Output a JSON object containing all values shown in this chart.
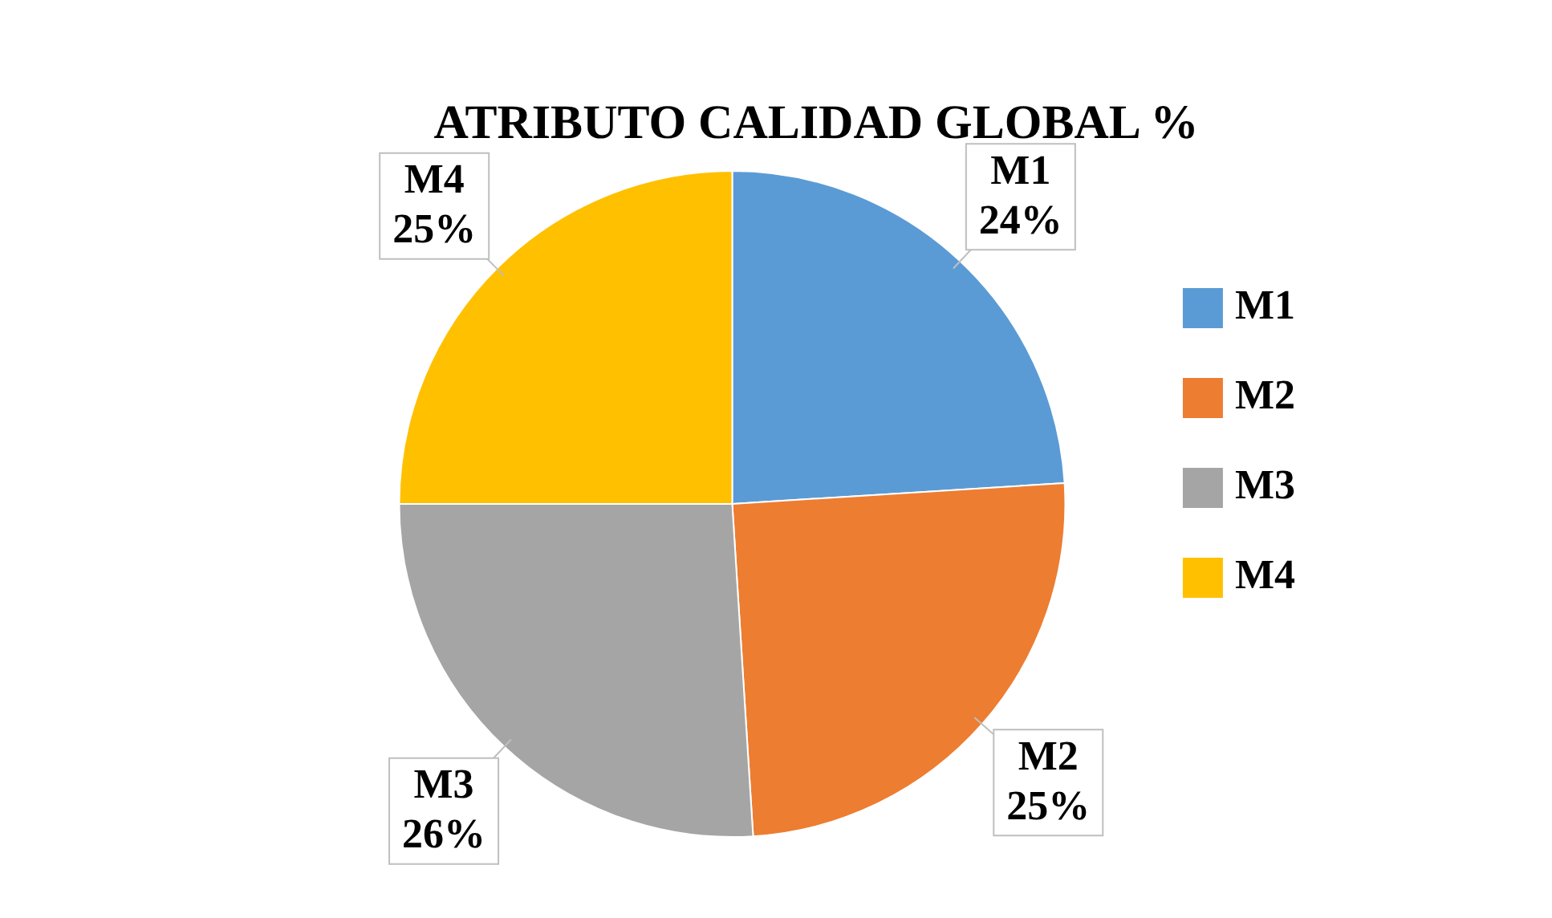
{
  "chart_data": {
    "type": "pie",
    "title": "ATRIBUTO CALIDAD GLOBAL %",
    "categories": [
      "M1",
      "M2",
      "M3",
      "M4"
    ],
    "values": [
      24,
      25,
      26,
      25
    ],
    "value_labels": [
      "24%",
      "25%",
      "26%",
      "25%"
    ],
    "colors": [
      "#5b9bd5",
      "#ed7d31",
      "#a5a5a5",
      "#ffc000"
    ],
    "legend": "right"
  }
}
